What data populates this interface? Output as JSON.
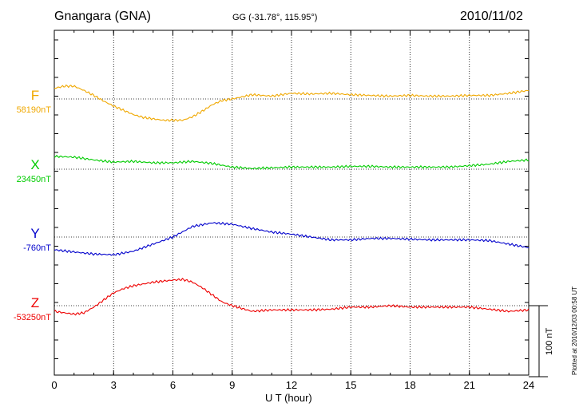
{
  "header": {
    "station": "Gnangara (GNA)",
    "coords": "GG (-31.78°, 115.95°)",
    "date": "2010/11/02",
    "plotted": "Plotted at 2010/12/03 00:58 UT"
  },
  "scale_bar": {
    "label": "100 nT",
    "value_nT": 100
  },
  "chart_data": {
    "type": "line",
    "xlabel": "U T (hour)",
    "xlim": [
      0,
      24
    ],
    "x_ticks": [
      "0",
      "3",
      "6",
      "9",
      "12",
      "15",
      "18",
      "21",
      "24"
    ],
    "grid": true,
    "series": [
      {
        "name": "F",
        "baseline": "58190nT",
        "color": "#f0a800",
        "x": [
          0,
          0.5,
          1,
          1.5,
          2,
          2.5,
          3,
          3.5,
          4,
          4.5,
          5,
          5.5,
          6,
          6.5,
          7,
          7.5,
          8,
          8.5,
          9,
          9.5,
          10,
          10.5,
          11,
          11.5,
          12,
          13,
          14,
          15,
          16,
          17,
          18,
          19,
          20,
          21,
          22,
          23,
          24
        ],
        "y": [
          15,
          18,
          18,
          12,
          5,
          -3,
          -10,
          -16,
          -22,
          -26,
          -28,
          -30,
          -30,
          -30,
          -25,
          -17,
          -8,
          -2,
          0,
          3,
          6,
          5,
          4,
          6,
          8,
          7,
          8,
          6,
          5,
          4,
          5,
          4,
          4,
          5,
          5,
          8,
          12
        ]
      },
      {
        "name": "X",
        "baseline": "23450nT",
        "color": "#00cc00",
        "x": [
          0,
          1,
          2,
          3,
          4,
          5,
          6,
          7,
          8,
          9,
          10,
          11,
          12,
          13,
          14,
          15,
          16,
          17,
          18,
          19,
          20,
          21,
          22,
          23,
          24
        ],
        "y": [
          18,
          17,
          13,
          10,
          11,
          9,
          9,
          11,
          8,
          3,
          1,
          2,
          3,
          3,
          3,
          4,
          4,
          3,
          3,
          3,
          3,
          5,
          7,
          11,
          13
        ]
      },
      {
        "name": "Y",
        "baseline": "-760nT",
        "color": "#0000cc",
        "x": [
          0,
          1,
          2,
          3,
          4,
          5,
          6,
          7,
          8,
          9,
          10,
          11,
          12,
          13,
          14,
          15,
          16,
          17,
          18,
          19,
          20,
          21,
          22,
          23,
          24
        ],
        "y": [
          -18,
          -21,
          -24,
          -25,
          -20,
          -10,
          0,
          15,
          20,
          18,
          12,
          7,
          4,
          0,
          -4,
          -4,
          -2,
          -2,
          -3,
          -4,
          -4,
          -4,
          -5,
          -10,
          -15
        ]
      },
      {
        "name": "Z",
        "baseline": "-53250nT",
        "color": "#ee0000",
        "x": [
          0,
          1,
          1.5,
          2,
          2.5,
          3,
          3.5,
          4,
          5,
          6,
          6.5,
          7,
          7.5,
          8,
          8.5,
          9,
          10,
          11,
          12,
          13,
          14,
          15,
          16,
          17,
          18,
          19,
          20,
          21,
          22,
          23,
          24
        ],
        "y": [
          -8,
          -12,
          -10,
          -2,
          8,
          18,
          24,
          28,
          33,
          36,
          37,
          33,
          25,
          15,
          5,
          0,
          -8,
          -6,
          -6,
          -6,
          -5,
          -2,
          -2,
          0,
          -2,
          -2,
          -2,
          -2,
          -5,
          -8,
          -6
        ]
      }
    ]
  }
}
